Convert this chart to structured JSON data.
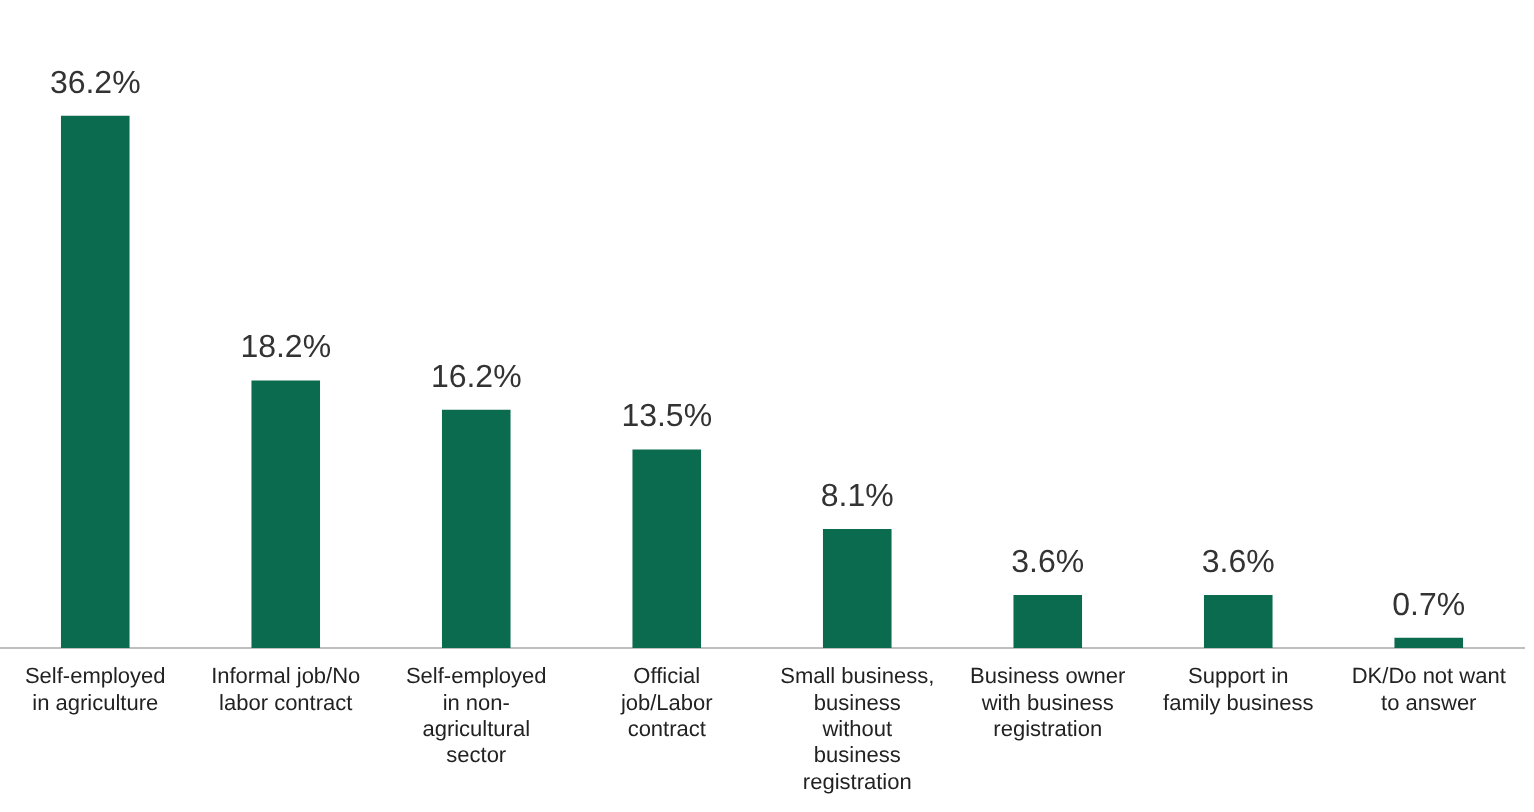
{
  "chart_data": {
    "type": "bar",
    "categories": [
      "Self-employed in agriculture",
      "Informal job/No labor contract",
      "Self-employed in non-agricultural sector",
      "Official job/Labor contract",
      "Small business, business without business registration",
      "Business owner with business registration",
      "Support in family business",
      "DK/Do not want to answer"
    ],
    "values": [
      36.2,
      18.2,
      16.2,
      13.5,
      8.1,
      3.6,
      3.6,
      0.7
    ],
    "value_labels": [
      "36.2%",
      "18.2%",
      "16.2%",
      "13.5%",
      "8.1%",
      "3.6%",
      "3.6%",
      "0.7%"
    ],
    "color": "#0b6b4f",
    "grid": false,
    "legend": false
  }
}
